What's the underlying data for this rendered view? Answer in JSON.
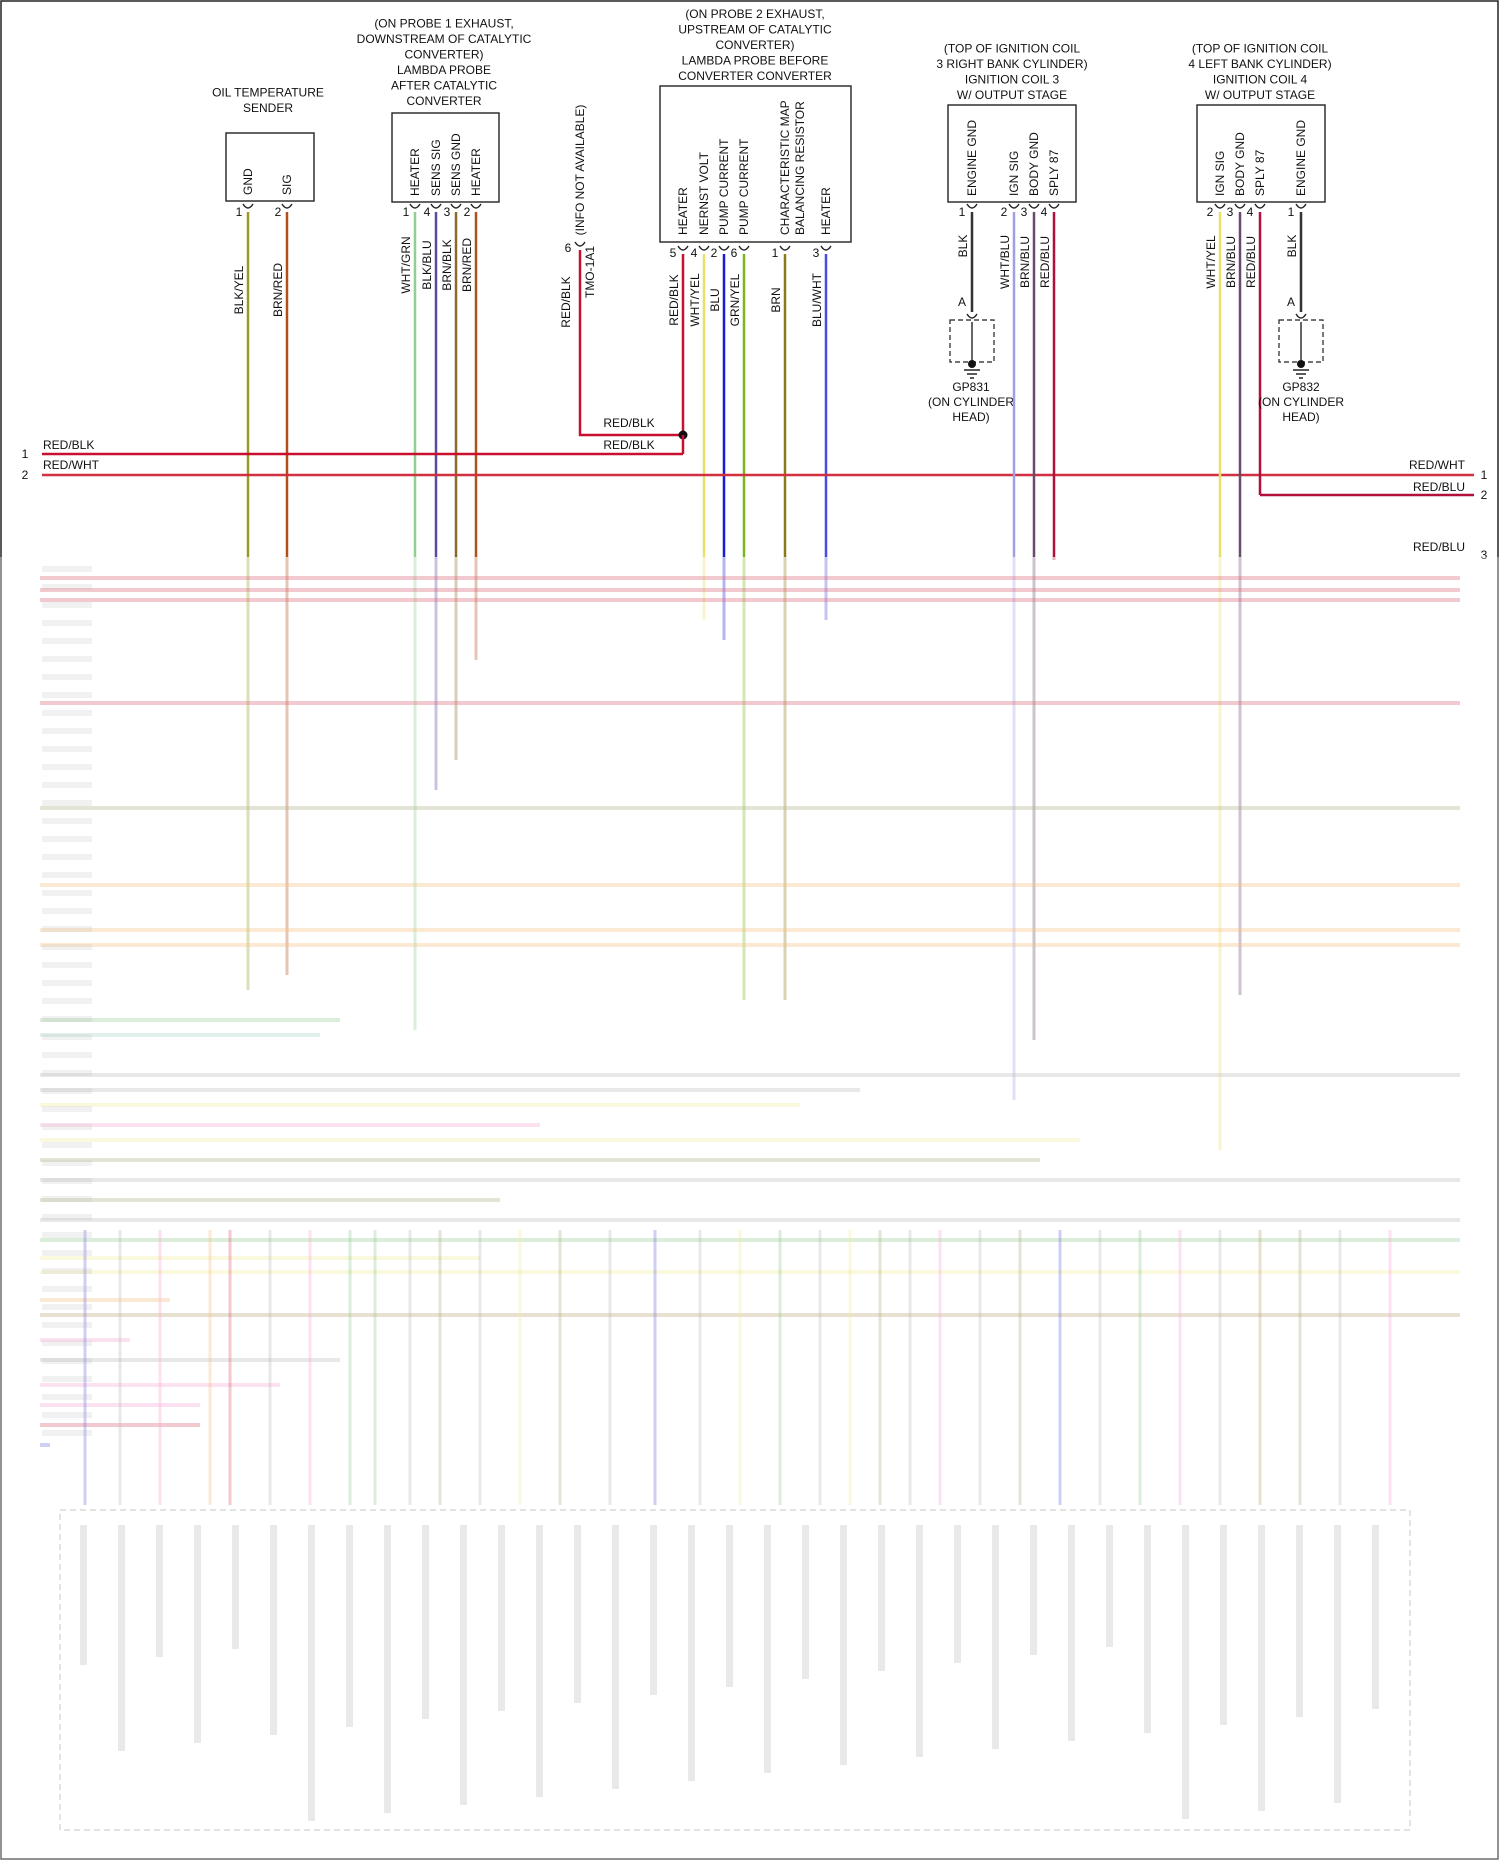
{
  "components": {
    "oil_temp_sender": {
      "title": [
        "OIL TEMPERATURE",
        "SENDER"
      ],
      "pins": [
        {
          "label": "GND",
          "num": "1",
          "wire": "BLK/YEL",
          "color": "#9a9a2a"
        },
        {
          "label": "SIG",
          "num": "2",
          "wire": "BRN/RED",
          "color": "#b0501a"
        }
      ]
    },
    "lambda_probe_1": {
      "title": [
        "(ON PROBE 1 EXHAUST,",
        "DOWNSTREAM OF CATALYTIC",
        "CONVERTER)",
        "LAMBDA PROBE",
        "AFTER CATALYTIC",
        "CONVERTER"
      ],
      "pins": [
        {
          "label": "HEATER",
          "num": "1",
          "wire": "WHT/GRN",
          "color": "#8fcf8f"
        },
        {
          "label": "SENS SIG",
          "num": "4",
          "wire": "BLK/BLU",
          "color": "#5a4aa0"
        },
        {
          "label": "SENS GND",
          "num": "3",
          "wire": "BRN/BLK",
          "color": "#8a6a2a"
        },
        {
          "label": "HEATER",
          "num": "2",
          "wire": "BRN/RED",
          "color": "#b0501a"
        }
      ]
    },
    "tmo_connector": {
      "info": "(INFO NOT AVAILABLE)",
      "name": "TMO-1A1",
      "num": "6",
      "wire": "RED/BLK",
      "color": "#c8102e"
    },
    "lambda_probe_2": {
      "title": [
        "(ON PROBE 2 EXHAUST,",
        "UPSTREAM OF CATALYTIC",
        "CONVERTER)",
        "LAMBDA PROBE BEFORE",
        "CONVERTER CONVERTER"
      ],
      "pins": [
        {
          "label": "HEATER",
          "num": "5",
          "wire": "RED/BLK",
          "color": "#c8102e"
        },
        {
          "label": "NERNST VOLT",
          "num": "4",
          "wire": "WHT/YEL",
          "color": "#e8e06a"
        },
        {
          "label": "PUMP CURRENT",
          "num": "2",
          "wire": "BLU",
          "color": "#1a1ad0"
        },
        {
          "label": "PUMP CURRENT",
          "num": "6",
          "wire": "GRN/YEL",
          "color": "#7ab81a"
        },
        {
          "label": "CHARACTERISTIC MAP",
          "label2": "BALANCING RESISTOR",
          "num": "1",
          "wire": "BRN",
          "color": "#8a7a1a"
        },
        {
          "label": "HEATER",
          "num": "3",
          "wire": "BLU/WHT",
          "color": "#4a4ae0"
        }
      ]
    },
    "ignition_coil_3": {
      "title": [
        "(TOP OF IGNITION COIL",
        "3 RIGHT BANK CYLINDER)",
        "IGNITION COIL 3",
        "W/ OUTPUT STAGE"
      ],
      "pins": [
        {
          "label": "ENGINE GND",
          "num": "1",
          "wire": "BLK",
          "color": "#333333"
        },
        {
          "label": "IGN SIG",
          "num": "2",
          "wire": "WHT/BLU",
          "color": "#a0a0e0"
        },
        {
          "label": "BODY GND",
          "num": "3",
          "wire": "BRN/BLU",
          "color": "#6a4a6a"
        },
        {
          "label": "SPLY 87",
          "num": "4",
          "wire": "RED/BLU",
          "color": "#b0103a"
        }
      ],
      "ground": {
        "pin": "A",
        "name": "GP831",
        "desc": [
          "(ON CYLINDER",
          "HEAD)"
        ]
      }
    },
    "ignition_coil_4": {
      "title": [
        "(TOP OF IGNITION COIL",
        "4 LEFT BANK CYLINDER)",
        "IGNITION COIL 4",
        "W/ OUTPUT STAGE"
      ],
      "pins": [
        {
          "label": "IGN SIG",
          "num": "2",
          "wire": "WHT/YEL",
          "color": "#e8e06a"
        },
        {
          "label": "BODY GND",
          "num": "3",
          "wire": "BRN/BLU",
          "color": "#6a4a6a"
        },
        {
          "label": "SPLY 87",
          "num": "4",
          "wire": "RED/BLU",
          "color": "#b0103a"
        },
        {
          "label": "ENGINE GND",
          "num": "1",
          "wire": "BLK",
          "color": "#333333"
        }
      ],
      "ground": {
        "pin": "A",
        "name": "GP832",
        "desc": [
          "(ON CYLINDER",
          "HEAD)"
        ]
      }
    }
  },
  "bus": {
    "left": [
      {
        "num": "1",
        "label": "RED/BLK",
        "color": "#c8102e"
      },
      {
        "num": "2",
        "label": "RED/WHT",
        "color": "#d03040"
      }
    ],
    "right": [
      {
        "num": "1",
        "label": "RED/WHT",
        "color": "#d03040"
      },
      {
        "num": "2",
        "label": "RED/BLU",
        "color": "#b0103a"
      },
      {
        "num": "3",
        "label": "RED/BLU",
        "color": "#b0103a"
      }
    ],
    "splice_labels": [
      "RED/BLK",
      "RED/BLK"
    ]
  },
  "colors": {
    "red": "#c8102e",
    "orange": "#f0a040",
    "pink": "#f080c0",
    "blue": "#2a2ad0",
    "lightblue": "#b0c0f0",
    "green": "#60b060",
    "olive": "#8a8a4a",
    "gray": "#9a9a9a",
    "yellow": "#e8e06a",
    "brown": "#9a7a3a",
    "teal": "#7ac0b0"
  }
}
